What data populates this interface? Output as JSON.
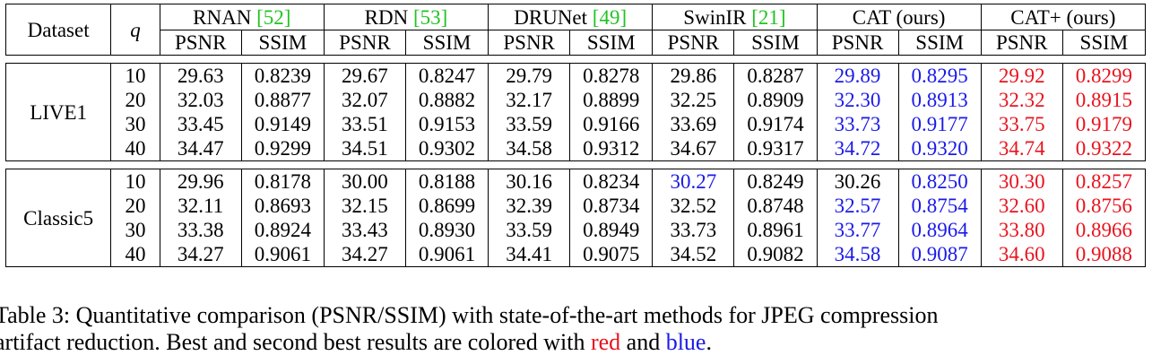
{
  "header": {
    "dataset": "Dataset",
    "q": "q",
    "methods": [
      {
        "name": "RNAN ",
        "ref": "[52]"
      },
      {
        "name": "RDN ",
        "ref": "[53]"
      },
      {
        "name": "DRUNet ",
        "ref": "[49]"
      },
      {
        "name": "SwinIR ",
        "ref": "[21]"
      },
      {
        "name": "CAT (ours)",
        "ref": ""
      },
      {
        "name": "CAT+ (ours)",
        "ref": ""
      }
    ],
    "psnr": "PSNR",
    "ssim": "SSIM"
  },
  "colors": {
    "best": "#e8141e",
    "second": "#1a1ae8",
    "ref": "#22c322"
  },
  "datasets": [
    {
      "name": "LIVE1",
      "rows": [
        {
          "q": "10",
          "vals": [
            "29.63",
            "0.8239",
            "29.67",
            "0.8247",
            "29.79",
            "0.8278",
            "29.86",
            "0.8287",
            "29.89",
            "0.8295",
            "29.92",
            "0.8299"
          ],
          "colors": [
            "",
            "",
            "",
            "",
            "",
            "",
            "",
            "",
            "blue",
            "blue",
            "red",
            "red"
          ]
        },
        {
          "q": "20",
          "vals": [
            "32.03",
            "0.8877",
            "32.07",
            "0.8882",
            "32.17",
            "0.8899",
            "32.25",
            "0.8909",
            "32.30",
            "0.8913",
            "32.32",
            "0.8915"
          ],
          "colors": [
            "",
            "",
            "",
            "",
            "",
            "",
            "",
            "",
            "blue",
            "blue",
            "red",
            "red"
          ]
        },
        {
          "q": "30",
          "vals": [
            "33.45",
            "0.9149",
            "33.51",
            "0.9153",
            "33.59",
            "0.9166",
            "33.69",
            "0.9174",
            "33.73",
            "0.9177",
            "33.75",
            "0.9179"
          ],
          "colors": [
            "",
            "",
            "",
            "",
            "",
            "",
            "",
            "",
            "blue",
            "blue",
            "red",
            "red"
          ]
        },
        {
          "q": "40",
          "vals": [
            "34.47",
            "0.9299",
            "34.51",
            "0.9302",
            "34.58",
            "0.9312",
            "34.67",
            "0.9317",
            "34.72",
            "0.9320",
            "34.74",
            "0.9322"
          ],
          "colors": [
            "",
            "",
            "",
            "",
            "",
            "",
            "",
            "",
            "blue",
            "blue",
            "red",
            "red"
          ]
        }
      ]
    },
    {
      "name": "Classic5",
      "rows": [
        {
          "q": "10",
          "vals": [
            "29.96",
            "0.8178",
            "30.00",
            "0.8188",
            "30.16",
            "0.8234",
            "30.27",
            "0.8249",
            "30.26",
            "0.8250",
            "30.30",
            "0.8257"
          ],
          "colors": [
            "",
            "",
            "",
            "",
            "",
            "",
            "blue",
            "",
            "",
            "blue",
            "red",
            "red"
          ]
        },
        {
          "q": "20",
          "vals": [
            "32.11",
            "0.8693",
            "32.15",
            "0.8699",
            "32.39",
            "0.8734",
            "32.52",
            "0.8748",
            "32.57",
            "0.8754",
            "32.60",
            "0.8756"
          ],
          "colors": [
            "",
            "",
            "",
            "",
            "",
            "",
            "",
            "",
            "blue",
            "blue",
            "red",
            "red"
          ]
        },
        {
          "q": "30",
          "vals": [
            "33.38",
            "0.8924",
            "33.43",
            "0.8930",
            "33.59",
            "0.8949",
            "33.73",
            "0.8961",
            "33.77",
            "0.8964",
            "33.80",
            "0.8966"
          ],
          "colors": [
            "",
            "",
            "",
            "",
            "",
            "",
            "",
            "",
            "blue",
            "blue",
            "red",
            "red"
          ]
        },
        {
          "q": "40",
          "vals": [
            "34.27",
            "0.9061",
            "34.27",
            "0.9061",
            "34.41",
            "0.9075",
            "34.52",
            "0.9082",
            "34.58",
            "0.9087",
            "34.60",
            "0.9088"
          ],
          "colors": [
            "",
            "",
            "",
            "",
            "",
            "",
            "",
            "",
            "blue",
            "blue",
            "red",
            "red"
          ]
        }
      ]
    }
  ],
  "caption": {
    "line1": "Table 3: Quantitative comparison (PSNR/SSIM) with state-of-the-art methods for JPEG compression",
    "line2_pre": "artifact reduction. Best and second best results are colored with ",
    "red_word": "red",
    "and": " and ",
    "blue_word": "blue",
    "period": "."
  }
}
